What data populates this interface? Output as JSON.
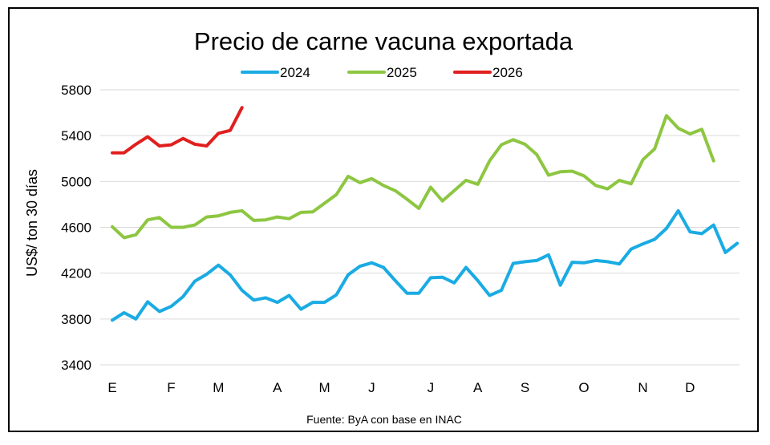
{
  "chart_data": {
    "type": "line",
    "title": "Precio de carne vacuna exportada",
    "ylabel": "US$/ ton 30 días",
    "xlabel": "",
    "source": "Fuente: ByA con base en INAC",
    "ylim": [
      3400,
      5800
    ],
    "yticks": [
      3400,
      3800,
      4200,
      4600,
      5000,
      5400,
      5800
    ],
    "grid": "horizontal",
    "legend_position": "top",
    "month_labels": [
      "E",
      "F",
      "M",
      "A",
      "M",
      "J",
      "J",
      "A",
      "S",
      "O",
      "N",
      "D"
    ],
    "month_week_index": [
      0,
      5,
      9,
      14,
      18,
      22,
      27,
      31,
      35,
      40,
      45,
      49
    ],
    "series": [
      {
        "name": "2024",
        "color": "#1aabe3",
        "values": [
          3790,
          3855,
          3800,
          3950,
          3865,
          3910,
          3995,
          4130,
          4190,
          4270,
          4185,
          4050,
          3965,
          3985,
          3945,
          4005,
          3885,
          3945,
          3945,
          4010,
          4185,
          4260,
          4290,
          4250,
          4135,
          4025,
          4025,
          4160,
          4165,
          4115,
          4250,
          4135,
          4005,
          4050,
          4285,
          4300,
          4310,
          4360,
          4095,
          4295,
          4290,
          4310,
          4300,
          4280,
          4410,
          4455,
          4495,
          4590,
          4745,
          4560,
          4545,
          4620,
          4380,
          4460
        ]
      },
      {
        "name": "2025",
        "color": "#8dc641",
        "values": [
          4605,
          4510,
          4535,
          4665,
          4685,
          4600,
          4600,
          4620,
          4690,
          4700,
          4730,
          4745,
          4660,
          4665,
          4690,
          4675,
          4730,
          4735,
          4810,
          4885,
          5045,
          4990,
          5025,
          4965,
          4920,
          4845,
          4765,
          4950,
          4830,
          4920,
          5010,
          4975,
          5180,
          5320,
          5365,
          5325,
          5235,
          5055,
          5085,
          5090,
          5050,
          4965,
          4935,
          5010,
          4980,
          5190,
          5285,
          5575,
          5465,
          5415,
          5455,
          5180
        ]
      },
      {
        "name": "2026",
        "color": "#e11f1f",
        "values": [
          5250,
          5250,
          5325,
          5390,
          5310,
          5320,
          5375,
          5325,
          5310,
          5420,
          5445,
          5645
        ]
      }
    ]
  }
}
